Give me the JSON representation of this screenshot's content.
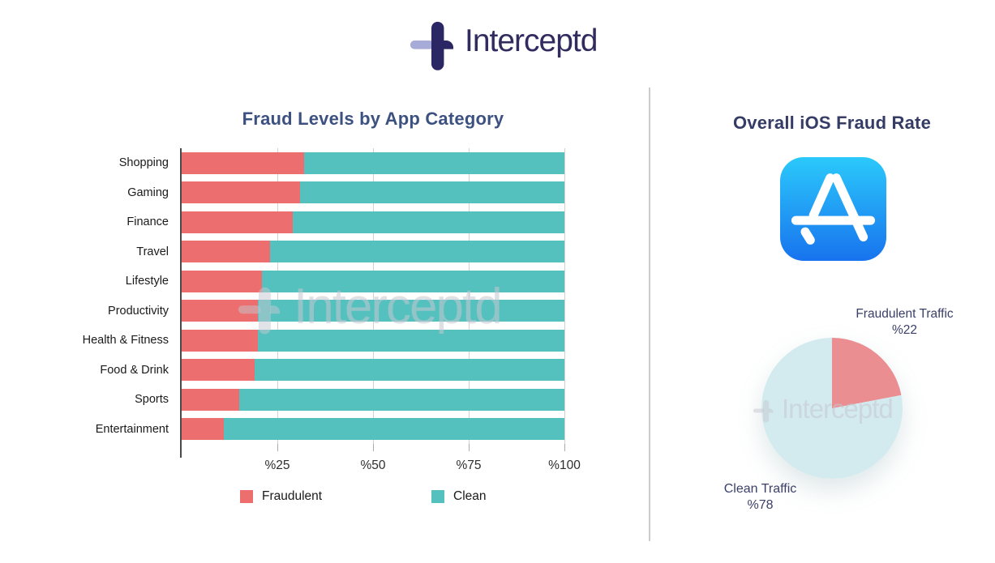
{
  "logo": {
    "brand": "Interceptd"
  },
  "watermark": {
    "text": "Interceptd"
  },
  "divider": true,
  "chart_data": [
    {
      "type": "bar",
      "orientation": "horizontal",
      "stacked": true,
      "title": "Fraud Levels by App Category",
      "categories": [
        "Shopping",
        "Gaming",
        "Finance",
        "Travel",
        "Lifestyle",
        "Productivity",
        "Health & Fitness",
        "Food & Drink",
        "Sports",
        "Entertainment"
      ],
      "series": [
        {
          "name": "Fraudulent",
          "color": "#ed6e6e",
          "values": [
            32,
            31,
            29,
            23,
            21,
            20,
            20,
            19,
            15,
            11
          ]
        },
        {
          "name": "Clean",
          "color": "#54c1bf",
          "values": [
            68,
            69,
            71,
            77,
            79,
            80,
            80,
            81,
            85,
            89
          ]
        }
      ],
      "xlim": [
        0,
        100
      ],
      "x_ticks": [
        {
          "label": "%25",
          "percent": 25
        },
        {
          "label": "%50",
          "percent": 50
        },
        {
          "label": "%75",
          "percent": 75
        },
        {
          "label": "%100",
          "percent": 100
        }
      ],
      "grid": true,
      "legend_position": "bottom"
    },
    {
      "type": "pie",
      "title": "Overall iOS Fraud Rate",
      "start_angle_deg": 0,
      "direction": "clockwise",
      "slices": [
        {
          "label": "Fraudulent Traffic",
          "value_label": "%22",
          "value": 22,
          "color": "#eb8e92"
        },
        {
          "label": "Clean Traffic",
          "value_label": "%78",
          "value": 78,
          "color": "#d3ebee"
        }
      ]
    }
  ],
  "icons": {
    "app_store": "app-store-icon",
    "brand_plus": "interceptd-plus-icon"
  },
  "colors": {
    "fraud_bar": "#ed6e6e",
    "clean_bar": "#54c1bf",
    "fraud_pie": "#eb8e92",
    "clean_pie": "#d3ebee",
    "title_left": "#3d5181",
    "title_right": "#353c66",
    "logo_navy": "#2b2664",
    "logo_lavender": "#a6abd8",
    "divider": "#cbcbcb"
  }
}
